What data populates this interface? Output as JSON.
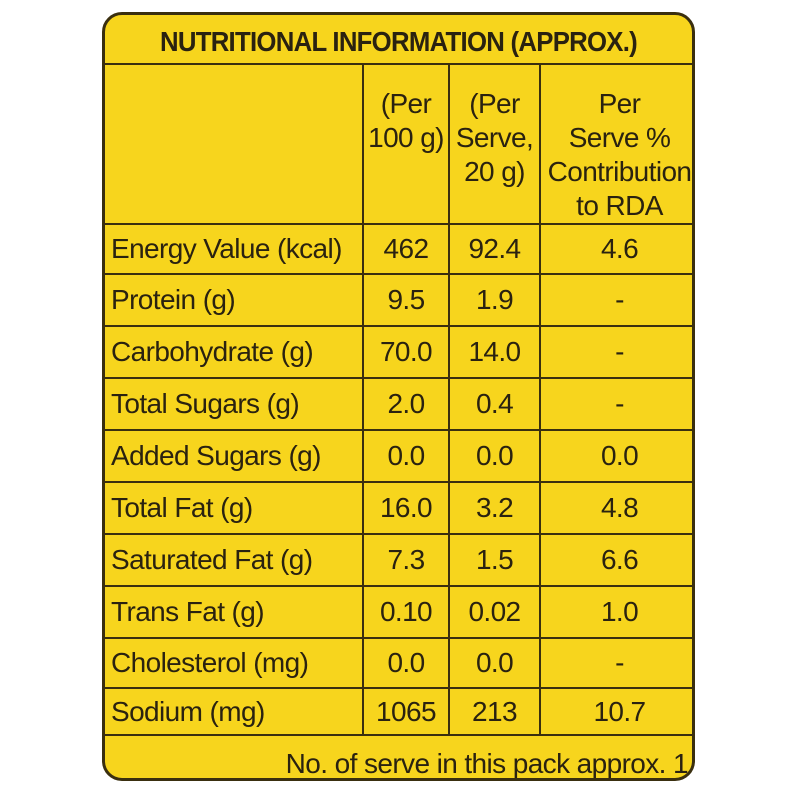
{
  "title": "NUTRITIONAL INFORMATION (APPROX.)",
  "headers": {
    "col1": [
      "(Per",
      "100 g)"
    ],
    "col2": [
      "(Per",
      "Serve,",
      "20 g)"
    ],
    "col3": [
      "Per",
      "Serve %",
      "Contribution",
      "to RDA"
    ]
  },
  "rows": [
    {
      "label": "Energy Value (kcal)",
      "per100": "462",
      "perServe": "92.4",
      "rda": "4.6"
    },
    {
      "label": "Protein (g)",
      "per100": "9.5",
      "perServe": "1.9",
      "rda": "-"
    },
    {
      "label": "Carbohydrate (g)",
      "per100": "70.0",
      "perServe": "14.0",
      "rda": "-"
    },
    {
      "label": "Total Sugars (g)",
      "per100": "2.0",
      "perServe": "0.4",
      "rda": "-"
    },
    {
      "label": "Added Sugars (g)",
      "per100": "0.0",
      "perServe": "0.0",
      "rda": "0.0"
    },
    {
      "label": "Total Fat (g)",
      "per100": "16.0",
      "perServe": "3.2",
      "rda": "4.8"
    },
    {
      "label": "Saturated Fat (g)",
      "per100": "7.3",
      "perServe": "1.5",
      "rda": "6.6"
    },
    {
      "label": "Trans Fat (g)",
      "per100": "0.10",
      "perServe": "0.02",
      "rda": "1.0"
    },
    {
      "label": "Cholesterol (mg)",
      "per100": "0.0",
      "perServe": "0.0",
      "rda": "-"
    },
    {
      "label": "Sodium (mg)",
      "per100": "1065",
      "perServe": "213",
      "rda": "10.7"
    }
  ],
  "footer": "No. of serve in this pack approx. 1",
  "colors": {
    "background": "#f7d51d",
    "ink": "#2a2210",
    "rule": "#3a2f0f"
  }
}
